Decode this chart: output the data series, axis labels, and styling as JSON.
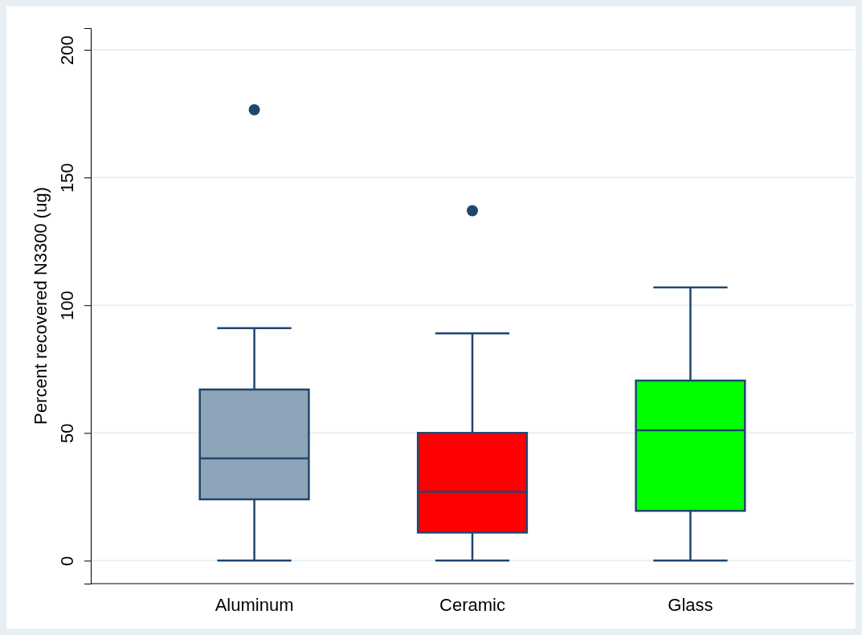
{
  "chart_data": {
    "type": "box",
    "ylabel": "Percent recovered N3300 (ug)",
    "categories": [
      "Aluminum",
      "Ceramic",
      "Glass"
    ],
    "colors": [
      "#8ea4b8",
      "#ff0000",
      "#00ff00"
    ],
    "boxes": [
      {
        "low": 0,
        "q1": 24,
        "median": 40,
        "q3": 67,
        "high": 91,
        "outliers": [
          176.5
        ]
      },
      {
        "low": 0,
        "q1": 11,
        "median": 27,
        "q3": 50,
        "high": 89,
        "outliers": [
          137
        ]
      },
      {
        "low": 0,
        "q1": 19.5,
        "median": 51,
        "q3": 70.5,
        "high": 107
      }
    ],
    "ylim": [
      -9,
      208.5
    ],
    "yticks": [
      0,
      50,
      100,
      150,
      200
    ],
    "grid": "y"
  }
}
